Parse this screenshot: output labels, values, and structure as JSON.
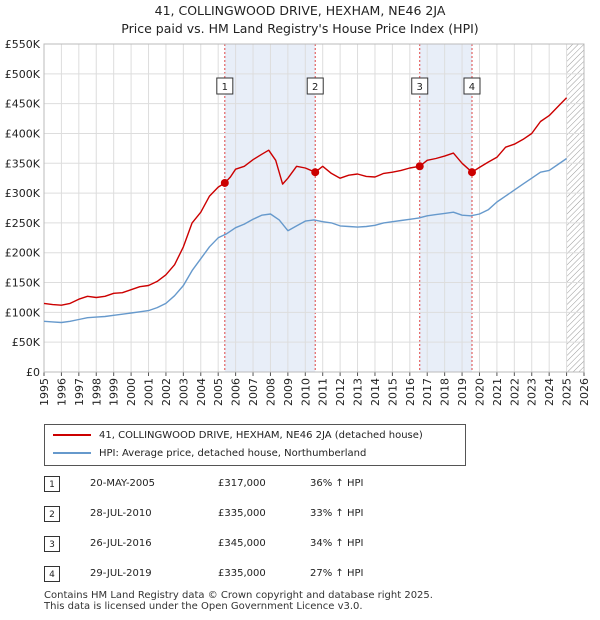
{
  "title_line1": "41, COLLINGWOOD DRIVE, HEXHAM, NE46 2JA",
  "title_line2": "Price paid vs. HM Land Registry's House Price Index (HPI)",
  "colors": {
    "property": "#cc0000",
    "hpi": "#6699cc",
    "highlight": "#e8eef8",
    "marker_line": "#dd4444"
  },
  "legend": {
    "property_label": "41, COLLINGWOOD DRIVE, HEXHAM, NE46 2JA (detached house)",
    "hpi_label": "HPI: Average price, detached house, Northumberland"
  },
  "sales": [
    {
      "num": "1",
      "date": "20-MAY-2005",
      "price": "£317,000",
      "hpi": "36% ↑ HPI"
    },
    {
      "num": "2",
      "date": "28-JUL-2010",
      "price": "£335,000",
      "hpi": "33% ↑ HPI"
    },
    {
      "num": "3",
      "date": "26-JUL-2016",
      "price": "£345,000",
      "hpi": "34% ↑ HPI"
    },
    {
      "num": "4",
      "date": "29-JUL-2019",
      "price": "£335,000",
      "hpi": "27% ↑ HPI"
    }
  ],
  "footer_line1": "Contains HM Land Registry data © Crown copyright and database right 2025.",
  "footer_line2": "This data is licensed under the Open Government Licence v3.0.",
  "chart_data": {
    "type": "line",
    "title": "41, COLLINGWOOD DRIVE, HEXHAM, NE46 2JA",
    "xlim": [
      1995,
      2026
    ],
    "ylim": [
      0,
      550000
    ],
    "x_ticks": [
      "1995",
      "1996",
      "1997",
      "1998",
      "1999",
      "2000",
      "2001",
      "2002",
      "2003",
      "2004",
      "2005",
      "2006",
      "2007",
      "2008",
      "2009",
      "2010",
      "2011",
      "2012",
      "2013",
      "2014",
      "2015",
      "2016",
      "2017",
      "2018",
      "2019",
      "2020",
      "2021",
      "2022",
      "2023",
      "2024",
      "2025",
      "2026"
    ],
    "y_ticks": [
      {
        "v": 0,
        "label": "£0"
      },
      {
        "v": 50000,
        "label": "£50K"
      },
      {
        "v": 100000,
        "label": "£100K"
      },
      {
        "v": 150000,
        "label": "£150K"
      },
      {
        "v": 200000,
        "label": "£200K"
      },
      {
        "v": 250000,
        "label": "£250K"
      },
      {
        "v": 300000,
        "label": "£300K"
      },
      {
        "v": 350000,
        "label": "£350K"
      },
      {
        "v": 400000,
        "label": "£400K"
      },
      {
        "v": 450000,
        "label": "£450K"
      },
      {
        "v": 500000,
        "label": "£500K"
      },
      {
        "v": 550000,
        "label": "£550K"
      }
    ],
    "highlight_spans": [
      [
        2005.38,
        2010.57
      ],
      [
        2016.57,
        2019.57
      ]
    ],
    "hatch_from": 2025.0,
    "sale_points": [
      {
        "num": "1",
        "x": 2005.38,
        "y": 317000
      },
      {
        "num": "2",
        "x": 2010.57,
        "y": 335000
      },
      {
        "num": "3",
        "x": 2016.57,
        "y": 345000
      },
      {
        "num": "4",
        "x": 2019.57,
        "y": 335000
      }
    ],
    "series": [
      {
        "name": "41, COLLINGWOOD DRIVE, HEXHAM, NE46 2JA (detached house)",
        "color": "#cc0000",
        "x": [
          1995,
          1995.5,
          1996,
          1996.5,
          1997,
          1997.5,
          1998,
          1998.5,
          1999,
          1999.5,
          2000,
          2000.5,
          2001,
          2001.5,
          2002,
          2002.5,
          2003,
          2003.5,
          2004,
          2004.5,
          2005,
          2005.38,
          2005.7,
          2006,
          2006.5,
          2007,
          2007.5,
          2007.9,
          2008.3,
          2008.7,
          2009,
          2009.5,
          2010,
          2010.57,
          2011,
          2011.5,
          2012,
          2012.5,
          2013,
          2013.5,
          2014,
          2014.5,
          2015,
          2015.5,
          2016,
          2016.57,
          2017,
          2017.5,
          2018,
          2018.5,
          2019,
          2019.57,
          2020,
          2020.5,
          2021,
          2021.5,
          2022,
          2022.5,
          2023,
          2023.5,
          2024,
          2024.5,
          2025
        ],
        "y": [
          115000,
          113000,
          112000,
          115000,
          122000,
          127000,
          125000,
          127000,
          132000,
          133000,
          138000,
          143000,
          145000,
          152000,
          163000,
          180000,
          210000,
          250000,
          268000,
          295000,
          310000,
          317000,
          327000,
          340000,
          345000,
          356000,
          365000,
          372000,
          355000,
          315000,
          325000,
          345000,
          342000,
          335000,
          345000,
          333000,
          325000,
          330000,
          332000,
          328000,
          327000,
          333000,
          335000,
          338000,
          342000,
          345000,
          355000,
          358000,
          362000,
          367000,
          350000,
          335000,
          343000,
          352000,
          360000,
          377000,
          382000,
          390000,
          400000,
          420000,
          430000,
          445000,
          460000
        ]
      },
      {
        "name": "HPI: Average price, detached house, Northumberland",
        "color": "#6699cc",
        "x": [
          1995,
          1995.5,
          1996,
          1996.5,
          1997,
          1997.5,
          1998,
          1998.5,
          1999,
          1999.5,
          2000,
          2000.5,
          2001,
          2001.5,
          2002,
          2002.5,
          2003,
          2003.5,
          2004,
          2004.5,
          2005,
          2005.5,
          2006,
          2006.5,
          2007,
          2007.5,
          2008,
          2008.5,
          2009,
          2009.5,
          2010,
          2010.5,
          2011,
          2011.5,
          2012,
          2012.5,
          2013,
          2013.5,
          2014,
          2014.5,
          2015,
          2015.5,
          2016,
          2016.5,
          2017,
          2017.5,
          2018,
          2018.5,
          2019,
          2019.5,
          2020,
          2020.5,
          2021,
          2021.5,
          2022,
          2022.5,
          2023,
          2023.5,
          2024,
          2024.5,
          2025
        ],
        "y": [
          85000,
          84000,
          83000,
          85000,
          88000,
          91000,
          92000,
          93000,
          95000,
          97000,
          99000,
          101000,
          103000,
          108000,
          115000,
          128000,
          145000,
          170000,
          190000,
          210000,
          225000,
          232000,
          242000,
          248000,
          256000,
          263000,
          265000,
          255000,
          237000,
          245000,
          253000,
          255000,
          252000,
          250000,
          245000,
          244000,
          243000,
          244000,
          246000,
          250000,
          252000,
          254000,
          256000,
          258000,
          262000,
          264000,
          266000,
          268000,
          263000,
          262000,
          265000,
          272000,
          285000,
          295000,
          305000,
          315000,
          325000,
          335000,
          338000,
          348000,
          358000
        ]
      }
    ]
  }
}
